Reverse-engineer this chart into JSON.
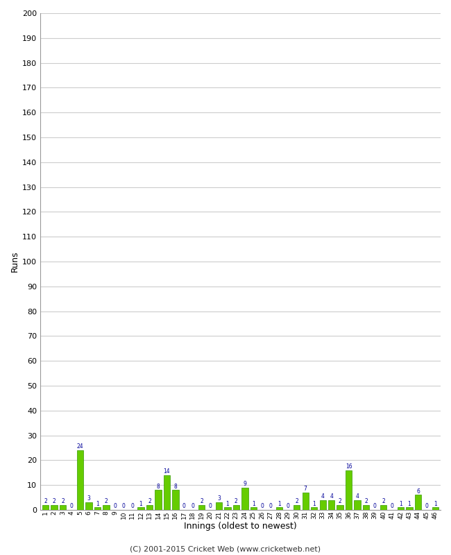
{
  "innings": [
    1,
    2,
    3,
    4,
    5,
    6,
    7,
    8,
    9,
    10,
    11,
    12,
    13,
    14,
    15,
    16,
    17,
    18,
    19,
    20,
    21,
    22,
    23,
    24,
    25,
    26,
    27,
    28,
    29,
    30,
    31,
    32,
    33,
    34,
    35,
    36,
    37,
    38,
    39,
    40,
    41,
    42,
    43,
    44,
    45,
    46
  ],
  "values": [
    2,
    2,
    2,
    0,
    24,
    3,
    1,
    2,
    0,
    0,
    0,
    1,
    2,
    8,
    14,
    8,
    0,
    0,
    2,
    0,
    3,
    1,
    2,
    9,
    1,
    0,
    0,
    1,
    0,
    2,
    7,
    1,
    4,
    4,
    2,
    16,
    4,
    2,
    0,
    2,
    0,
    1,
    1,
    6,
    0,
    1
  ],
  "bar_color": "#66cc00",
  "bar_edge_color": "#339900",
  "label_color": "#000099",
  "ylabel": "Runs",
  "xlabel": "Innings (oldest to newest)",
  "yticks": [
    0,
    10,
    20,
    30,
    40,
    50,
    60,
    70,
    80,
    90,
    100,
    110,
    120,
    130,
    140,
    150,
    160,
    170,
    180,
    190,
    200
  ],
  "ylim": [
    0,
    200
  ],
  "background_color": "#ffffff",
  "grid_color": "#cccccc",
  "footer": "(C) 2001-2015 Cricket Web (www.cricketweb.net)"
}
